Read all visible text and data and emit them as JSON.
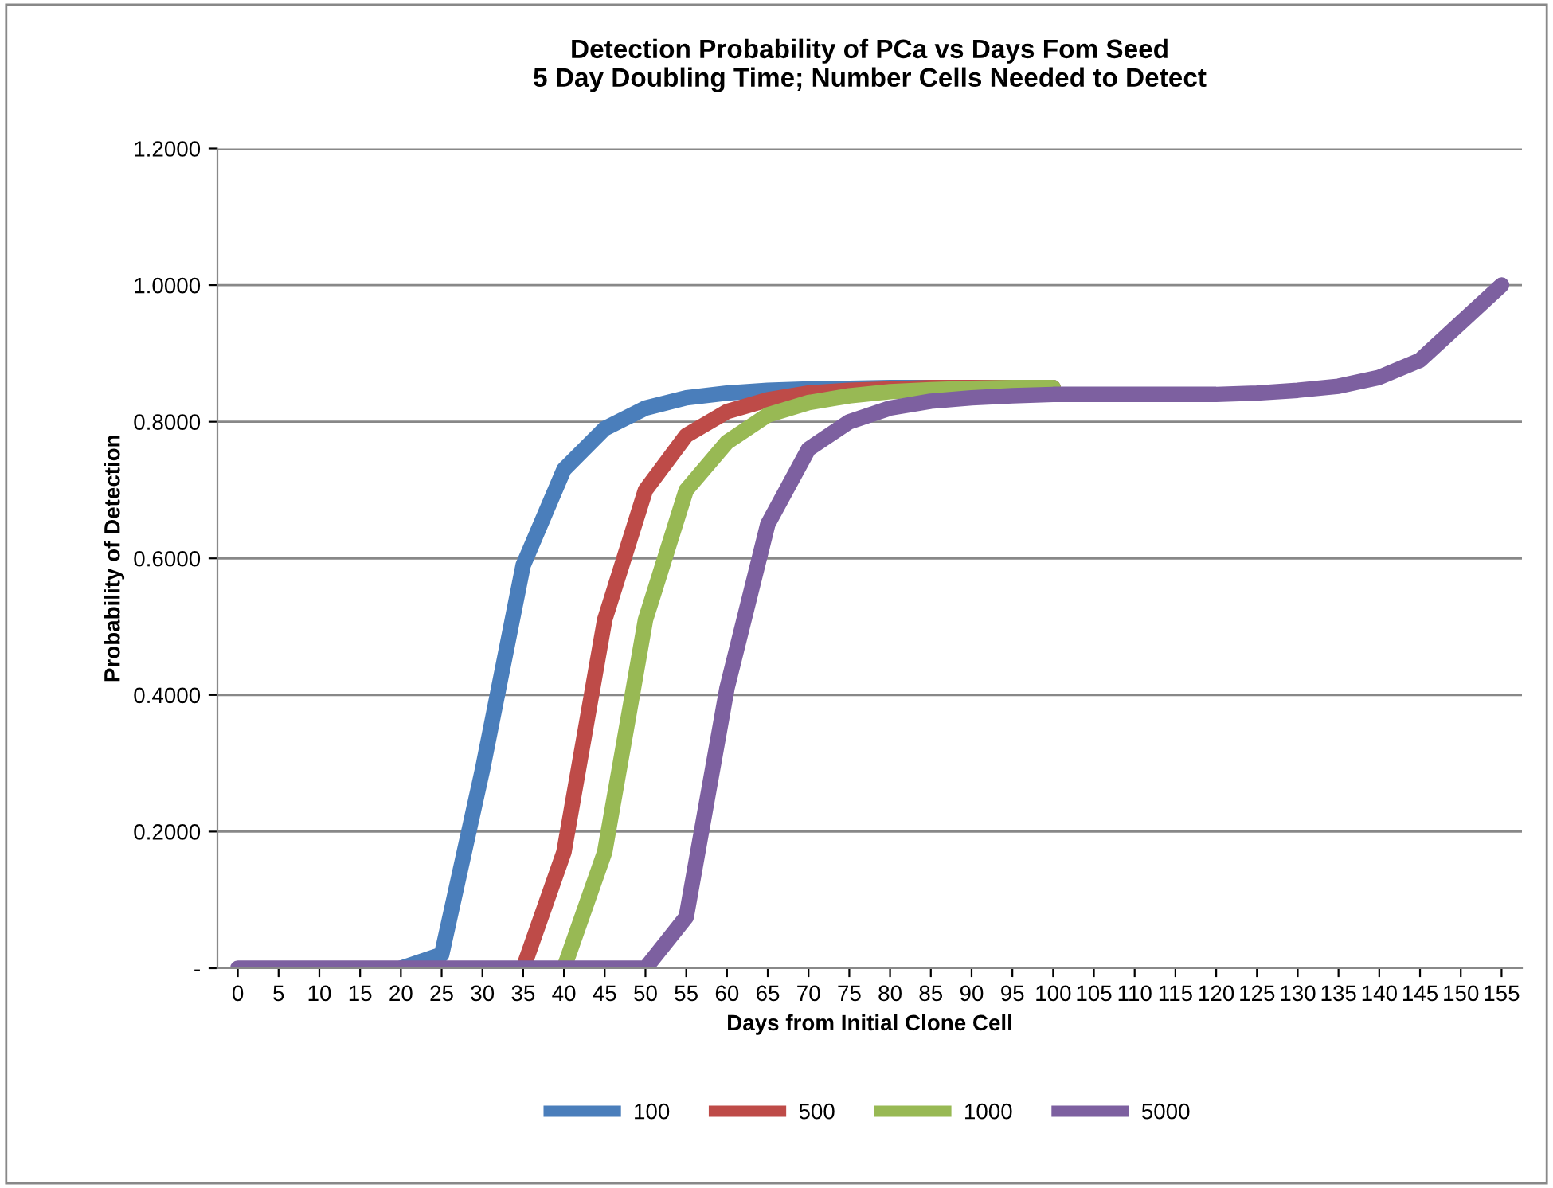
{
  "chart_data": {
    "type": "line",
    "title": "Detection Probability of PCa vs Days Fom Seed\n5 Day Doubling Time; Number Cells Needed to Detect",
    "xlabel": "Days from Initial Clone Cell",
    "ylabel": "Probability of Detection",
    "categories": [
      "0",
      "5",
      "10",
      "15",
      "20",
      "25",
      "30",
      "35",
      "40",
      "45",
      "50",
      "55",
      "60",
      "65",
      "70",
      "75",
      "80",
      "85",
      "90",
      "95",
      "100",
      "105",
      "110",
      "115",
      "120",
      "125",
      "130",
      "135",
      "140",
      "145",
      "150",
      "155"
    ],
    "ylim": [
      0,
      1.2
    ],
    "yticks": [
      {
        "value": 0,
        "label": "-"
      },
      {
        "value": 0.2,
        "label": "0.2000"
      },
      {
        "value": 0.4,
        "label": "0.4000"
      },
      {
        "value": 0.6,
        "label": "0.6000"
      },
      {
        "value": 0.8,
        "label": "0.8000"
      },
      {
        "value": 1.0,
        "label": "1.0000"
      },
      {
        "value": 1.2,
        "label": "1.2000"
      }
    ],
    "grid": "y",
    "legend": "bottom",
    "marker": "none",
    "line_style": "solid",
    "series": [
      {
        "name": "100",
        "color": "#4a7ebb",
        "values": [
          null,
          null,
          null,
          null,
          0,
          0.02,
          0.29,
          0.59,
          0.73,
          0.79,
          0.82,
          0.835,
          0.842,
          0.846,
          0.848,
          0.849,
          0.85,
          0.85,
          0.85,
          0.85,
          0.85,
          null,
          null,
          null,
          null,
          null,
          null,
          null,
          null,
          null,
          null,
          null
        ]
      },
      {
        "name": "500",
        "color": "#be4b48",
        "values": [
          null,
          null,
          null,
          null,
          null,
          null,
          null,
          0,
          0.17,
          0.51,
          0.7,
          0.78,
          0.815,
          0.832,
          0.842,
          0.846,
          0.848,
          0.85,
          0.85,
          0.85,
          0.85,
          null,
          null,
          null,
          null,
          null,
          null,
          null,
          null,
          null,
          null,
          null
        ]
      },
      {
        "name": "1000",
        "color": "#98b954",
        "values": [
          null,
          null,
          null,
          null,
          null,
          null,
          null,
          null,
          0,
          0.17,
          0.51,
          0.7,
          0.77,
          0.81,
          0.828,
          0.838,
          0.844,
          0.847,
          0.849,
          0.85,
          0.85,
          null,
          null,
          null,
          null,
          null,
          null,
          null,
          null,
          null,
          null,
          null
        ]
      },
      {
        "name": "5000",
        "color": "#7d60a0",
        "values": [
          0,
          0,
          0,
          0,
          0,
          0,
          0,
          0,
          0,
          0,
          0,
          0.075,
          0.41,
          0.65,
          0.76,
          0.8,
          0.82,
          0.83,
          0.835,
          0.838,
          0.84,
          0.84,
          0.84,
          0.84,
          0.84,
          0.842,
          0.846,
          0.852,
          0.865,
          0.89,
          0.945,
          1.0
        ]
      }
    ]
  }
}
